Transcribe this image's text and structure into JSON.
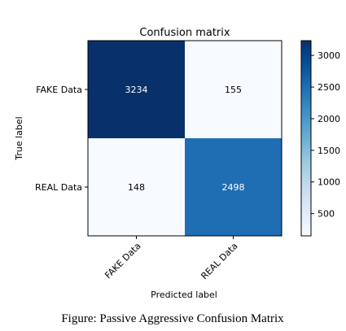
{
  "chart_data": {
    "type": "heatmap",
    "title": "Confusion matrix",
    "xlabel": "Predicted label",
    "ylabel": "True label",
    "x_categories": [
      "FAKE Data",
      "REAL Data"
    ],
    "y_categories": [
      "FAKE Data",
      "REAL Data"
    ],
    "values": [
      [
        3234,
        155
      ],
      [
        148,
        2498
      ]
    ],
    "colormap": "Blues",
    "colorbar": {
      "ticks": [
        500,
        1000,
        1500,
        2000,
        2500,
        3000
      ],
      "tick_labels": [
        "500",
        "1000",
        "1500",
        "2000",
        "2500",
        "3000"
      ],
      "vmin": 148,
      "vmax": 3234
    }
  },
  "caption": "Figure: Passive Aggressive Confusion Matrix"
}
